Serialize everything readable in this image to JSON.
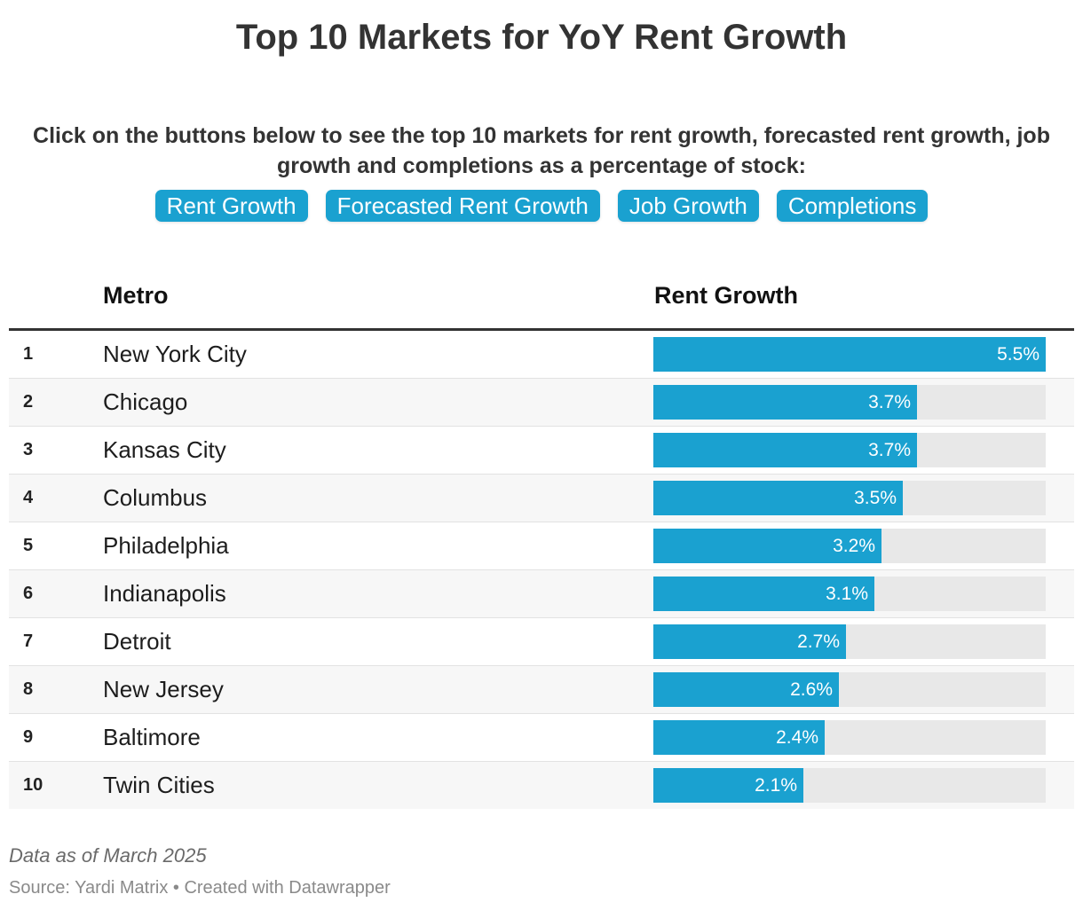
{
  "title": "Top 10 Markets for YoY Rent Growth",
  "intro": "Click on the buttons below to see the top 10 markets for rent growth, forecasted rent growth, job growth and completions as a percentage of stock:",
  "buttons": [
    "Rent Growth",
    "Forecasted Rent Growth",
    "Job Growth",
    "Completions"
  ],
  "colors": {
    "accent": "#1aa1d0",
    "track": "#e8e8e8",
    "row_alt": "#f7f7f7"
  },
  "table": {
    "headers": {
      "metro": "Metro",
      "value": "Rent Growth"
    }
  },
  "chart_data": {
    "type": "bar",
    "categories": [
      "New York City",
      "Chicago",
      "Kansas City",
      "Columbus",
      "Philadelphia",
      "Indianapolis",
      "Detroit",
      "New Jersey",
      "Baltimore",
      "Twin Cities"
    ],
    "ranks": [
      "1",
      "2",
      "3",
      "4",
      "5",
      "6",
      "7",
      "8",
      "9",
      "10"
    ],
    "values": [
      5.5,
      3.7,
      3.7,
      3.5,
      3.2,
      3.1,
      2.7,
      2.6,
      2.4,
      2.1
    ],
    "labels": [
      "5.5%",
      "3.7%",
      "3.7%",
      "3.5%",
      "3.2%",
      "3.1%",
      "2.7%",
      "2.6%",
      "2.4%",
      "2.1%"
    ],
    "xlim": [
      0,
      5.5
    ],
    "orientation": "horizontal"
  },
  "footer": {
    "note": "Data as of March 2025",
    "source": "Source: Yardi Matrix • Created with Datawrapper"
  }
}
